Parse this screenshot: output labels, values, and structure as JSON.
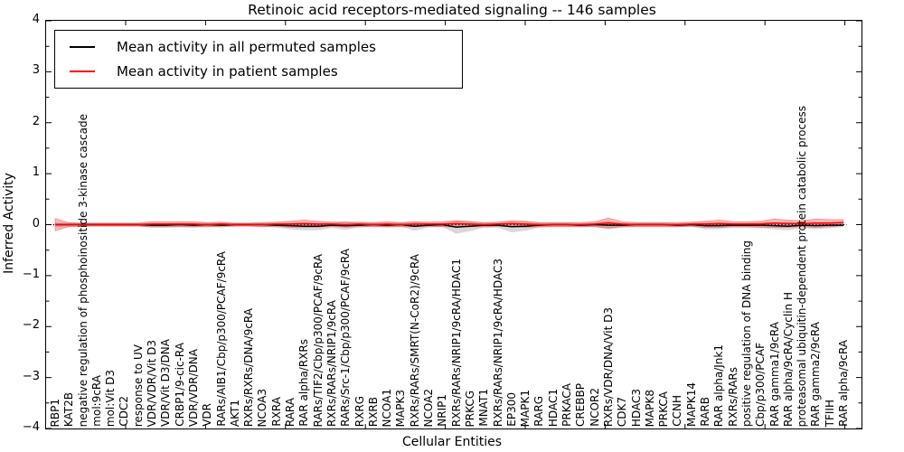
{
  "chart_data": {
    "type": "line",
    "title": "Retinoic acid receptors-mediated signaling -- 146 samples",
    "xlabel": "Cellular Entities",
    "ylabel": "Inferred Activity",
    "ylim": [
      -4,
      4
    ],
    "grid": false,
    "legend_position": "upper left",
    "yticks": [
      {
        "value": 4,
        "label": "4"
      },
      {
        "value": 3,
        "label": "3"
      },
      {
        "value": 2,
        "label": "2"
      },
      {
        "value": 1,
        "label": "1"
      },
      {
        "value": 0,
        "label": "0"
      },
      {
        "value": -1,
        "label": "−1"
      },
      {
        "value": -2,
        "label": "−2"
      },
      {
        "value": -3,
        "label": "−3"
      },
      {
        "value": -4,
        "label": "−4"
      }
    ],
    "zero_line": {
      "value": 0,
      "style": "dotted",
      "color": "#000000"
    },
    "categories": [
      "RBP1",
      "KAT2B",
      "negative regulation of phosphoinositide 3-kinase cascade",
      "mol:9cRA",
      "mol:Vit D3",
      "CDC2",
      "response to UV",
      "VDR/VDR/Vit D3",
      "VDR/Vit D3/DNA",
      "CRBP1/9-cic-RA",
      "VDR/VDR/DNA",
      "VDR",
      "RARs/AIB1/Cbp/p300/PCAF/9cRA",
      "AKT1",
      "RXRs/RXRs/DNA/9cRA",
      "NCOA3",
      "RXRA",
      "RARA",
      "RAR alpha/RXRs",
      "RARs/TIF2/Cbp/p300/PCAF/9cRA",
      "RXRs/RARs/NRIP1/9cRA",
      "RARs/Src-1/Cbp/p300/PCAF/9cRA",
      "RXRG",
      "RXRB",
      "NCOA1",
      "MAPK3",
      "RXRs/RARs/SMRT(N-CoR2)/9cRA",
      "NCOA2",
      "NRIP1",
      "RXRs/RARs/NRIP1/9cRA/HDAC1",
      "PRKCG",
      "MNAT1",
      "RXRs/RARs/NRIP1/9cRA/HDAC3",
      "EP300",
      "MAPK1",
      "RARG",
      "HDAC1",
      "PRKACA",
      "CREBBP",
      "NCOR2",
      "RXRs/VDR/DNA/Vit D3",
      "CDK7",
      "HDAC3",
      "MAPK8",
      "PRKCA",
      "CCNH",
      "MAPK14",
      "RARB",
      "RAR alpha/Jnk1",
      "RXRs/RARs",
      "positive regulation of DNA binding",
      "Cbp/p300/PCAF",
      "RAR gamma1/9cRA",
      "RAR alpha/9cRA/Cyclin H",
      "proteasomal ubiquitin-dependent protein catabolic process",
      "RAR gamma2/9cRA",
      "TFIIH",
      "RAR alpha/9cRA"
    ],
    "series": [
      {
        "name": "Mean activity in all permuted samples",
        "color": "#000000",
        "band_color": "rgba(125,125,125,0.30)",
        "band_edge": "none",
        "band_name": "permuted-band",
        "line_name": "permuted-mean-line",
        "values": [
          0,
          0,
          0,
          0,
          0,
          0,
          0,
          -0.01,
          -0.01,
          0,
          -0.01,
          0,
          -0.01,
          0,
          0,
          0,
          -0.01,
          -0.02,
          -0.03,
          -0.03,
          -0.01,
          -0.02,
          -0.01,
          0,
          -0.01,
          0,
          -0.03,
          -0.01,
          0,
          -0.05,
          -0.03,
          -0.01,
          -0.01,
          -0.04,
          -0.03,
          -0.01,
          0,
          0,
          -0.01,
          0,
          -0.01,
          -0.01,
          0,
          0,
          0,
          -0.01,
          0,
          -0.02,
          -0.02,
          -0.01,
          -0.01,
          -0.01,
          -0.02,
          -0.03,
          -0.01,
          -0.02,
          -0.01,
          -0.01
        ],
        "band": [
          0.04,
          0.04,
          0.03,
          0.03,
          0.03,
          0.03,
          0.03,
          0.05,
          0.05,
          0.05,
          0.05,
          0.04,
          0.05,
          0.03,
          0.03,
          0.04,
          0.05,
          0.07,
          0.08,
          0.08,
          0.06,
          0.08,
          0.05,
          0.04,
          0.05,
          0.04,
          0.09,
          0.05,
          0.04,
          0.13,
          0.1,
          0.05,
          0.05,
          0.11,
          0.09,
          0.05,
          0.04,
          0.04,
          0.04,
          0.04,
          0.08,
          0.05,
          0.04,
          0.04,
          0.04,
          0.04,
          0.04,
          0.07,
          0.07,
          0.05,
          0.05,
          0.06,
          0.07,
          0.08,
          0.06,
          0.07,
          0.06,
          0.04
        ]
      },
      {
        "name": "Mean activity in patient samples",
        "color": "#ff0000",
        "band_color": "rgba(255,0,0,0.28)",
        "band_edge": "rgba(255,0,0,0.35)",
        "band_name": "patient-band",
        "line_name": "patient-mean-line",
        "values": [
          0,
          0,
          0,
          0,
          0,
          0,
          0,
          0.01,
          0.01,
          0.01,
          0.01,
          0,
          0.01,
          0,
          0,
          0,
          0.01,
          0.01,
          0.02,
          0.01,
          0.01,
          0,
          0.01,
          0,
          0.01,
          0,
          0.01,
          0.01,
          0.01,
          0.02,
          0.01,
          0,
          0.01,
          0.02,
          0.01,
          0,
          0,
          0,
          0,
          0.01,
          0.03,
          0.01,
          0,
          0,
          0,
          0,
          0.01,
          0.01,
          0.02,
          0.01,
          0.01,
          0.01,
          0.03,
          0.02,
          0.02,
          0.03,
          0.03,
          0.04
        ],
        "band": [
          0.12,
          0.04,
          0.03,
          0.03,
          0.03,
          0.03,
          0.03,
          0.05,
          0.05,
          0.05,
          0.05,
          0.04,
          0.04,
          0.03,
          0.03,
          0.04,
          0.04,
          0.06,
          0.07,
          0.06,
          0.04,
          0.05,
          0.04,
          0.04,
          0.05,
          0.04,
          0.05,
          0.04,
          0.05,
          0.06,
          0.05,
          0.04,
          0.04,
          0.06,
          0.06,
          0.04,
          0.04,
          0.04,
          0.04,
          0.05,
          0.1,
          0.05,
          0.04,
          0.04,
          0.04,
          0.04,
          0.04,
          0.06,
          0.07,
          0.05,
          0.05,
          0.06,
          0.08,
          0.07,
          0.06,
          0.08,
          0.07,
          0.06
        ]
      }
    ]
  }
}
